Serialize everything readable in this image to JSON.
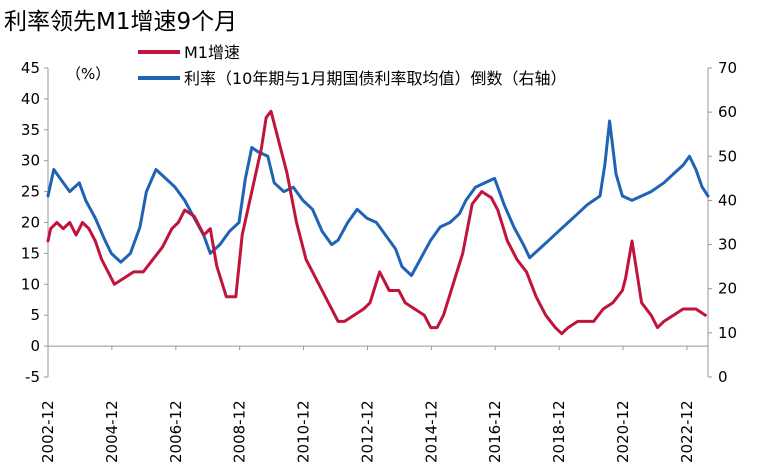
{
  "chart_data": {
    "type": "line",
    "title": "利率领先M1增速9个月",
    "left_unit": "（%）",
    "ylim_left": [
      -5,
      45
    ],
    "yticks_left": [
      -5,
      0,
      5,
      10,
      15,
      20,
      25,
      30,
      35,
      40,
      45
    ],
    "ylim_right": [
      0,
      70
    ],
    "yticks_right": [
      0,
      10,
      20,
      30,
      40,
      50,
      60,
      70
    ],
    "xlim": [
      2002.92,
      2023.58
    ],
    "xticks": [
      {
        "label": "2002-12",
        "x": 2002.92
      },
      {
        "label": "2004-12",
        "x": 2004.92
      },
      {
        "label": "2006-12",
        "x": 2006.92
      },
      {
        "label": "2008-12",
        "x": 2008.92
      },
      {
        "label": "2010-12",
        "x": 2010.92
      },
      {
        "label": "2012-12",
        "x": 2012.92
      },
      {
        "label": "2014-12",
        "x": 2014.92
      },
      {
        "label": "2016-12",
        "x": 2016.92
      },
      {
        "label": "2018-12",
        "x": 2018.92
      },
      {
        "label": "2020-12",
        "x": 2020.92
      },
      {
        "label": "2022-12",
        "x": 2022.92
      }
    ],
    "grid": false,
    "legend_position": "top",
    "series": [
      {
        "name": "M1增速",
        "axis": "left",
        "color": "#c0143c",
        "x": [
          2002.92,
          2003.0,
          2003.2,
          2003.4,
          2003.6,
          2003.8,
          2004.0,
          2004.2,
          2004.4,
          2004.6,
          2004.8,
          2005.0,
          2005.3,
          2005.6,
          2005.9,
          2006.2,
          2006.5,
          2006.8,
          2007.0,
          2007.2,
          2007.5,
          2007.8,
          2008.0,
          2008.2,
          2008.5,
          2008.8,
          2009.0,
          2009.3,
          2009.6,
          2009.75,
          2009.9,
          2010.1,
          2010.4,
          2010.7,
          2011.0,
          2011.3,
          2011.6,
          2011.9,
          2012.0,
          2012.2,
          2012.5,
          2012.8,
          2013.0,
          2013.3,
          2013.6,
          2013.9,
          2014.0,
          2014.1,
          2014.4,
          2014.7,
          2014.9,
          2015.1,
          2015.3,
          2015.6,
          2015.9,
          2016.2,
          2016.5,
          2016.8,
          2017.0,
          2017.3,
          2017.6,
          2017.9,
          2018.2,
          2018.5,
          2018.8,
          2019.0,
          2019.2,
          2019.5,
          2019.8,
          2020.0,
          2020.3,
          2020.6,
          2020.9,
          2021.0,
          2021.2,
          2021.5,
          2021.8,
          2022.0,
          2022.2,
          2022.5,
          2022.8,
          2023.0,
          2023.2,
          2023.5
        ],
        "values": [
          17,
          19,
          20,
          19,
          20,
          18,
          20,
          19,
          17,
          14,
          12,
          10,
          11,
          12,
          12,
          14,
          16,
          19,
          20,
          22,
          21,
          18,
          19,
          13,
          8,
          8,
          18,
          25,
          32,
          37,
          38,
          34,
          28,
          20,
          14,
          11,
          8,
          5,
          4,
          4,
          5,
          6,
          7,
          12,
          9,
          9,
          8,
          7,
          6,
          5,
          3,
          3,
          5,
          10,
          15,
          23,
          25,
          24,
          22,
          17,
          14,
          12,
          8,
          5,
          3,
          2,
          3,
          4,
          4,
          4,
          6,
          7,
          9,
          11,
          17,
          7,
          5,
          3,
          4,
          5,
          6,
          6,
          6,
          5
        ]
      },
      {
        "name": "利率（10年期与1月期国债利率取均值）倒数（右轴）",
        "axis": "right",
        "color": "#1f63b4",
        "x": [
          2002.92,
          2003.1,
          2003.3,
          2003.6,
          2003.9,
          2004.1,
          2004.4,
          2004.7,
          2004.9,
          2005.2,
          2005.5,
          2005.8,
          2006.0,
          2006.3,
          2006.6,
          2006.9,
          2007.2,
          2007.5,
          2007.8,
          2008.0,
          2008.3,
          2008.6,
          2008.9,
          2009.1,
          2009.3,
          2009.5,
          2009.8,
          2010.0,
          2010.3,
          2010.6,
          2010.9,
          2011.2,
          2011.5,
          2011.8,
          2012.0,
          2012.3,
          2012.6,
          2012.9,
          2013.2,
          2013.5,
          2013.8,
          2014.0,
          2014.3,
          2014.6,
          2014.9,
          2015.2,
          2015.5,
          2015.8,
          2016.0,
          2016.3,
          2016.6,
          2016.9,
          2017.2,
          2017.5,
          2017.8,
          2018.0,
          2018.3,
          2018.6,
          2018.9,
          2019.2,
          2019.5,
          2019.8,
          2020.0,
          2020.2,
          2020.35,
          2020.5,
          2020.7,
          2020.9,
          2021.2,
          2021.5,
          2021.8,
          2022.0,
          2022.2,
          2022.5,
          2022.8,
          2023.0,
          2023.2,
          2023.4,
          2023.58
        ],
        "values": [
          41,
          47,
          45,
          42,
          44,
          40,
          36,
          31,
          28,
          26,
          28,
          34,
          42,
          47,
          45,
          43,
          40,
          36,
          32,
          28,
          30,
          33,
          35,
          45,
          52,
          51,
          50,
          44,
          42,
          43,
          40,
          38,
          33,
          30,
          31,
          35,
          38,
          36,
          35,
          32,
          29,
          25,
          23,
          27,
          31,
          34,
          35,
          37,
          40,
          43,
          44,
          45,
          39,
          34,
          30,
          27,
          29,
          31,
          33,
          35,
          37,
          39,
          40,
          41,
          48,
          58,
          46,
          41,
          40,
          41,
          42,
          43,
          44,
          46,
          48,
          50,
          47,
          43,
          41
        ]
      }
    ]
  }
}
